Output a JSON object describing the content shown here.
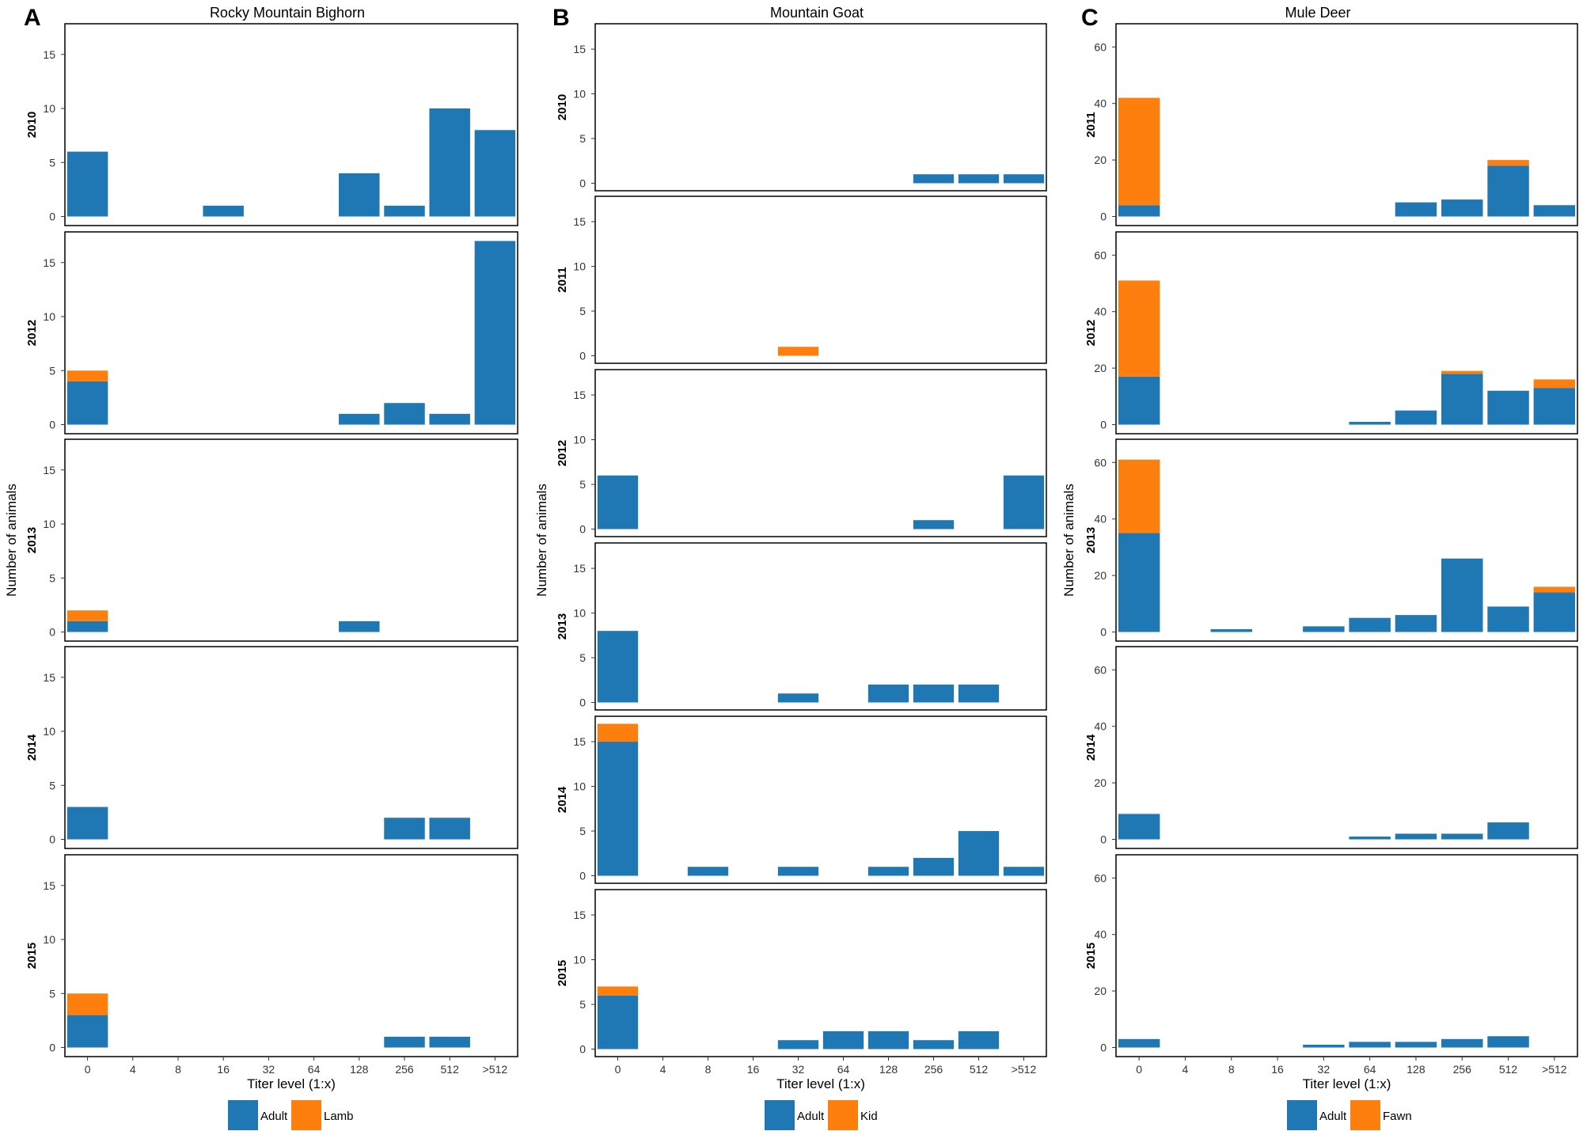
{
  "x_categories": [
    "0",
    "4",
    "8",
    "16",
    "32",
    "64",
    "128",
    "256",
    "512",
    ">512"
  ],
  "x_axis_label": "Titer level (1:x)",
  "y_axis_label": "Number of animals",
  "colors": {
    "adult": "#1f77b4",
    "young": "#ff7f0e"
  },
  "chart_data": [
    {
      "type": "bar",
      "stacked": true,
      "panel_letter": "A",
      "title": "Rocky Mountain Bighorn",
      "xlabel": "Titer level (1:x)",
      "ylabel": "Number of animals",
      "categories": [
        "0",
        "4",
        "8",
        "16",
        "32",
        "64",
        "128",
        "256",
        "512",
        ">512"
      ],
      "ylim": [
        0,
        17
      ],
      "yticks": [
        0,
        5,
        10,
        15
      ],
      "legend": [
        "Adult",
        "Lamb"
      ],
      "facets": [
        {
          "year": "2010",
          "adult": [
            6,
            0,
            0,
            1,
            0,
            0,
            4,
            1,
            10,
            8
          ],
          "young": [
            0,
            0,
            0,
            0,
            0,
            0,
            0,
            0,
            0,
            0
          ]
        },
        {
          "year": "2012",
          "adult": [
            4,
            0,
            0,
            0,
            0,
            0,
            1,
            2,
            1,
            17
          ],
          "young": [
            1,
            0,
            0,
            0,
            0,
            0,
            0,
            0,
            0,
            0
          ]
        },
        {
          "year": "2013",
          "adult": [
            1,
            0,
            0,
            0,
            0,
            0,
            1,
            0,
            0,
            0
          ],
          "young": [
            1,
            0,
            0,
            0,
            0,
            0,
            0,
            0,
            0,
            0
          ]
        },
        {
          "year": "2014",
          "adult": [
            3,
            0,
            0,
            0,
            0,
            0,
            0,
            2,
            2,
            0
          ],
          "young": [
            0,
            0,
            0,
            0,
            0,
            0,
            0,
            0,
            0,
            0
          ]
        },
        {
          "year": "2015",
          "adult": [
            3,
            0,
            0,
            0,
            0,
            0,
            0,
            1,
            1,
            0
          ],
          "young": [
            2,
            0,
            0,
            0,
            0,
            0,
            0,
            0,
            0,
            0
          ]
        }
      ]
    },
    {
      "type": "bar",
      "stacked": true,
      "panel_letter": "B",
      "title": "Mountain Goat",
      "xlabel": "Titer level (1:x)",
      "ylabel": "Number of animals",
      "categories": [
        "0",
        "4",
        "8",
        "16",
        "32",
        "64",
        "128",
        "256",
        "512",
        ">512"
      ],
      "ylim": [
        0,
        17
      ],
      "yticks": [
        0,
        5,
        10,
        15
      ],
      "legend": [
        "Adult",
        "Kid"
      ],
      "facets": [
        {
          "year": "2010",
          "adult": [
            0,
            0,
            0,
            0,
            0,
            0,
            0,
            1,
            1,
            1
          ],
          "young": [
            0,
            0,
            0,
            0,
            0,
            0,
            0,
            0,
            0,
            0
          ]
        },
        {
          "year": "2011",
          "adult": [
            0,
            0,
            0,
            0,
            0,
            0,
            0,
            0,
            0,
            0
          ],
          "young": [
            0,
            0,
            0,
            0,
            1,
            0,
            0,
            0,
            0,
            0
          ]
        },
        {
          "year": "2012",
          "adult": [
            6,
            0,
            0,
            0,
            0,
            0,
            0,
            1,
            0,
            6
          ],
          "young": [
            0,
            0,
            0,
            0,
            0,
            0,
            0,
            0,
            0,
            0
          ]
        },
        {
          "year": "2013",
          "adult": [
            8,
            0,
            0,
            0,
            1,
            0,
            2,
            2,
            2,
            0
          ],
          "young": [
            0,
            0,
            0,
            0,
            0,
            0,
            0,
            0,
            0,
            0
          ]
        },
        {
          "year": "2014",
          "adult": [
            15,
            0,
            1,
            0,
            1,
            0,
            1,
            2,
            5,
            1
          ],
          "young": [
            2,
            0,
            0,
            0,
            0,
            0,
            0,
            0,
            0,
            0
          ]
        },
        {
          "year": "2015",
          "adult": [
            6,
            0,
            0,
            0,
            1,
            2,
            2,
            1,
            2,
            0
          ],
          "young": [
            1,
            0,
            0,
            0,
            0,
            0,
            0,
            0,
            0,
            0
          ]
        }
      ]
    },
    {
      "type": "bar",
      "stacked": true,
      "panel_letter": "C",
      "title": "Mule Deer",
      "xlabel": "Titer level (1:x)",
      "ylabel": "Number of animals",
      "categories": [
        "0",
        "4",
        "8",
        "16",
        "32",
        "64",
        "128",
        "256",
        "512",
        ">512"
      ],
      "ylim": [
        0,
        65
      ],
      "yticks": [
        0,
        20,
        40,
        60
      ],
      "legend": [
        "Adult",
        "Fawn"
      ],
      "facets": [
        {
          "year": "2011",
          "adult": [
            4,
            0,
            0,
            0,
            0,
            0,
            5,
            6,
            18,
            4
          ],
          "young": [
            38,
            0,
            0,
            0,
            0,
            0,
            0,
            0,
            2,
            0
          ]
        },
        {
          "year": "2012",
          "adult": [
            17,
            0,
            0,
            0,
            0,
            1,
            5,
            18,
            12,
            13
          ],
          "young": [
            34,
            0,
            0,
            0,
            0,
            0,
            0,
            1,
            0,
            3
          ]
        },
        {
          "year": "2013",
          "adult": [
            35,
            0,
            1,
            0,
            2,
            5,
            6,
            26,
            9,
            14
          ],
          "young": [
            26,
            0,
            0,
            0,
            0,
            0,
            0,
            0,
            0,
            2
          ]
        },
        {
          "year": "2014",
          "adult": [
            9,
            0,
            0,
            0,
            0,
            1,
            2,
            2,
            6,
            0
          ],
          "young": [
            0,
            0,
            0,
            0,
            0,
            0,
            0,
            0,
            0,
            0
          ]
        },
        {
          "year": "2015",
          "adult": [
            3,
            0,
            0,
            0,
            1,
            2,
            2,
            3,
            4,
            0
          ],
          "young": [
            0,
            0,
            0,
            0,
            0,
            0,
            0,
            0,
            0,
            0
          ]
        }
      ]
    }
  ]
}
